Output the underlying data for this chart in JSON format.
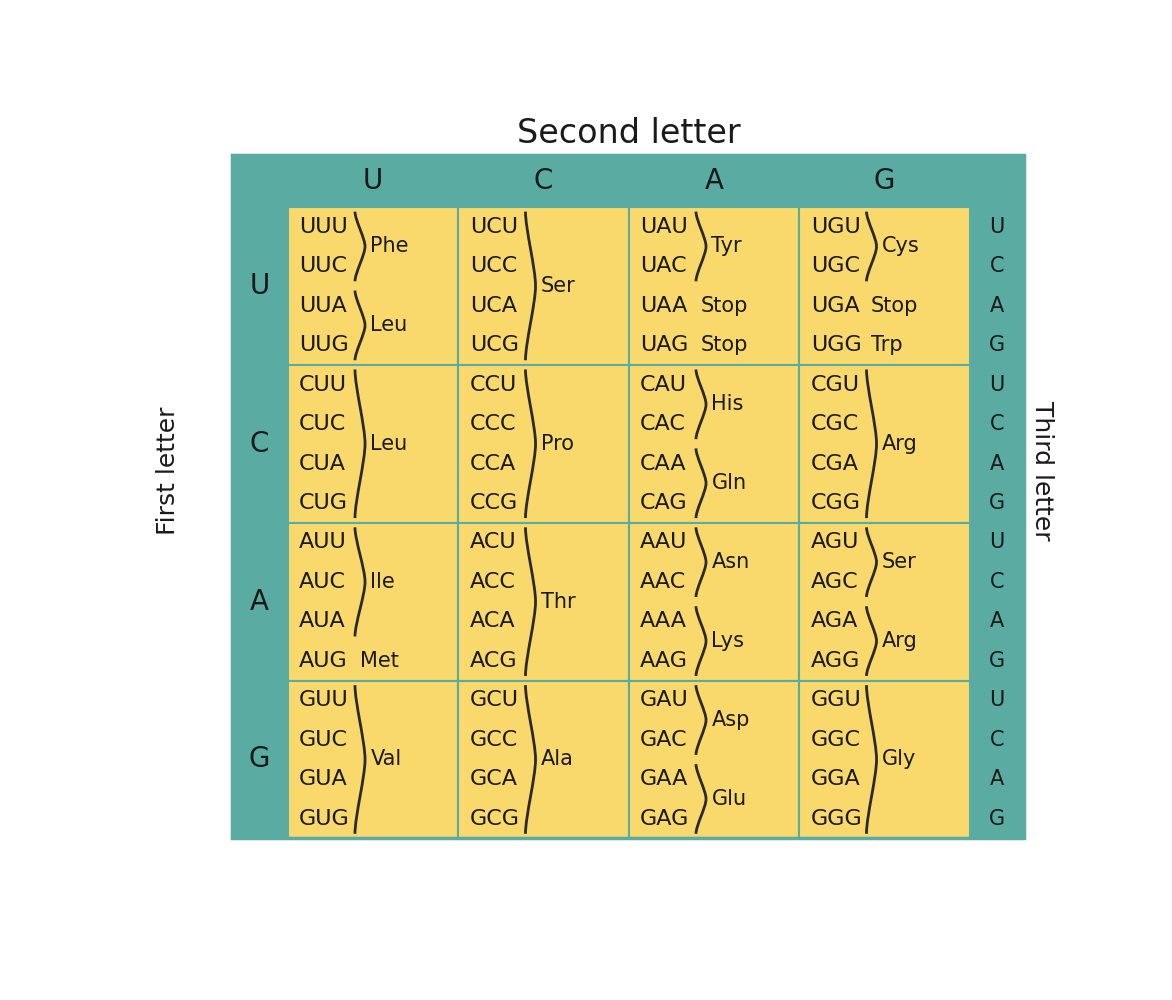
{
  "title": "Second letter",
  "first_letter_label": "First letter",
  "third_letter_label": "Third letter",
  "second_letters": [
    "U",
    "C",
    "A",
    "G"
  ],
  "first_letters": [
    "U",
    "C",
    "A",
    "G"
  ],
  "third_letters": [
    "U",
    "C",
    "A",
    "G"
  ],
  "header_color": "#5aaba2",
  "cell_color": "#f9d96b",
  "text_color": "#1a1a1a",
  "background_color": "#ffffff",
  "border_color": "#5aaba2",
  "cell_data": [
    [
      {
        "lines": [
          "UUU",
          "UUC",
          "UUA",
          "UUG"
        ],
        "groups": [
          {
            "s": 0,
            "e": 1,
            "label": "Phe",
            "inline": false
          },
          {
            "s": 2,
            "e": 3,
            "label": "Leu",
            "inline": false
          }
        ]
      },
      {
        "lines": [
          "UCU",
          "UCC",
          "UCA",
          "UCG"
        ],
        "groups": [
          {
            "s": 0,
            "e": 3,
            "label": "Ser",
            "inline": false
          }
        ]
      },
      {
        "lines": [
          "UAU",
          "UAC",
          "UAA",
          "UAG"
        ],
        "groups": [
          {
            "s": 0,
            "e": 1,
            "label": "Tyr",
            "inline": false
          },
          {
            "s": 2,
            "e": 2,
            "label": "Stop",
            "inline": true
          },
          {
            "s": 3,
            "e": 3,
            "label": "Stop",
            "inline": true
          }
        ]
      },
      {
        "lines": [
          "UGU",
          "UGC",
          "UGA",
          "UGG"
        ],
        "groups": [
          {
            "s": 0,
            "e": 1,
            "label": "Cys",
            "inline": false
          },
          {
            "s": 2,
            "e": 2,
            "label": "Stop",
            "inline": true
          },
          {
            "s": 3,
            "e": 3,
            "label": "Trp",
            "inline": true
          }
        ]
      }
    ],
    [
      {
        "lines": [
          "CUU",
          "CUC",
          "CUA",
          "CUG"
        ],
        "groups": [
          {
            "s": 0,
            "e": 3,
            "label": "Leu",
            "inline": false
          }
        ]
      },
      {
        "lines": [
          "CCU",
          "CCC",
          "CCA",
          "CCG"
        ],
        "groups": [
          {
            "s": 0,
            "e": 3,
            "label": "Pro",
            "inline": false
          }
        ]
      },
      {
        "lines": [
          "CAU",
          "CAC",
          "CAA",
          "CAG"
        ],
        "groups": [
          {
            "s": 0,
            "e": 1,
            "label": "His",
            "inline": false
          },
          {
            "s": 2,
            "e": 3,
            "label": "Gln",
            "inline": false
          }
        ]
      },
      {
        "lines": [
          "CGU",
          "CGC",
          "CGA",
          "CGG"
        ],
        "groups": [
          {
            "s": 0,
            "e": 3,
            "label": "Arg",
            "inline": false
          }
        ]
      }
    ],
    [
      {
        "lines": [
          "AUU",
          "AUC",
          "AUA",
          "AUG"
        ],
        "groups": [
          {
            "s": 0,
            "e": 2,
            "label": "Ile",
            "inline": false
          },
          {
            "s": 3,
            "e": 3,
            "label": "Met",
            "inline": true
          }
        ]
      },
      {
        "lines": [
          "ACU",
          "ACC",
          "ACA",
          "ACG"
        ],
        "groups": [
          {
            "s": 0,
            "e": 3,
            "label": "Thr",
            "inline": false
          }
        ]
      },
      {
        "lines": [
          "AAU",
          "AAC",
          "AAA",
          "AAG"
        ],
        "groups": [
          {
            "s": 0,
            "e": 1,
            "label": "Asn",
            "inline": false
          },
          {
            "s": 2,
            "e": 3,
            "label": "Lys",
            "inline": false
          }
        ]
      },
      {
        "lines": [
          "AGU",
          "AGC",
          "AGA",
          "AGG"
        ],
        "groups": [
          {
            "s": 0,
            "e": 1,
            "label": "Ser",
            "inline": false
          },
          {
            "s": 2,
            "e": 3,
            "label": "Arg",
            "inline": false
          }
        ]
      }
    ],
    [
      {
        "lines": [
          "GUU",
          "GUC",
          "GUA",
          "GUG"
        ],
        "groups": [
          {
            "s": 0,
            "e": 3,
            "label": "Val",
            "inline": false
          }
        ]
      },
      {
        "lines": [
          "GCU",
          "GCC",
          "GCA",
          "GCG"
        ],
        "groups": [
          {
            "s": 0,
            "e": 3,
            "label": "Ala",
            "inline": false
          }
        ]
      },
      {
        "lines": [
          "GAU",
          "GAC",
          "GAA",
          "GAG"
        ],
        "groups": [
          {
            "s": 0,
            "e": 1,
            "label": "Asp",
            "inline": false
          },
          {
            "s": 2,
            "e": 3,
            "label": "Glu",
            "inline": false
          }
        ]
      },
      {
        "lines": [
          "GGU",
          "GGC",
          "GGA",
          "GGG"
        ],
        "groups": [
          {
            "s": 0,
            "e": 3,
            "label": "Gly",
            "inline": false
          }
        ]
      }
    ]
  ]
}
